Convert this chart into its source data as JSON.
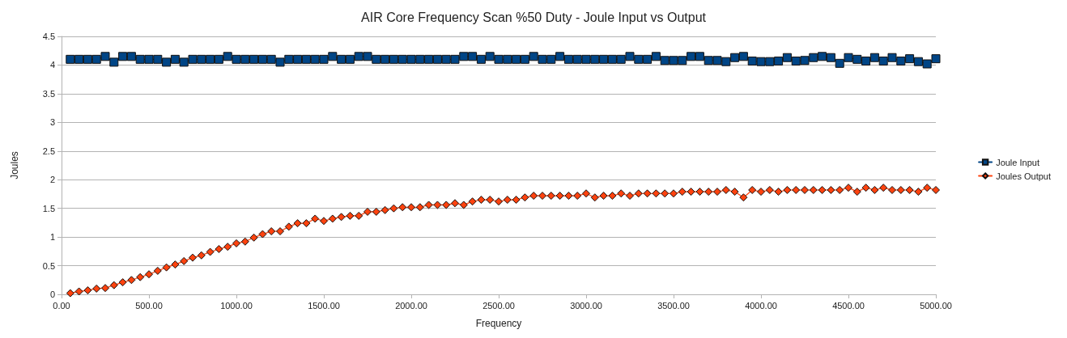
{
  "chart_data": {
    "type": "line",
    "title": "AIR Core Frequency Scan %50 Duty - Joule Input vs Output",
    "xlabel": "Frequency",
    "ylabel": "Joules",
    "x": [
      50,
      100,
      150,
      200,
      250,
      300,
      350,
      400,
      450,
      500,
      550,
      600,
      650,
      700,
      750,
      800,
      850,
      900,
      950,
      1000,
      1050,
      1100,
      1150,
      1200,
      1250,
      1300,
      1350,
      1400,
      1450,
      1500,
      1550,
      1600,
      1650,
      1700,
      1750,
      1800,
      1850,
      1900,
      1950,
      2000,
      2050,
      2100,
      2150,
      2200,
      2250,
      2300,
      2350,
      2400,
      2450,
      2500,
      2550,
      2600,
      2650,
      2700,
      2750,
      2800,
      2850,
      2900,
      2950,
      3000,
      3050,
      3100,
      3150,
      3200,
      3250,
      3300,
      3350,
      3400,
      3450,
      3500,
      3550,
      3600,
      3650,
      3700,
      3750,
      3800,
      3850,
      3900,
      3950,
      4000,
      4050,
      4100,
      4150,
      4200,
      4250,
      4300,
      4350,
      4400,
      4450,
      4500,
      4550,
      4600,
      4650,
      4700,
      4750,
      4800,
      4850,
      4900,
      4950,
      5000
    ],
    "series": [
      {
        "name": "Joule Input",
        "color": "#004586",
        "marker": "square",
        "values": [
          4.1,
          4.1,
          4.1,
          4.1,
          4.15,
          4.05,
          4.15,
          4.15,
          4.1,
          4.1,
          4.1,
          4.05,
          4.1,
          4.05,
          4.1,
          4.1,
          4.1,
          4.1,
          4.15,
          4.1,
          4.1,
          4.1,
          4.1,
          4.1,
          4.05,
          4.1,
          4.1,
          4.1,
          4.1,
          4.1,
          4.15,
          4.1,
          4.1,
          4.15,
          4.15,
          4.1,
          4.1,
          4.1,
          4.1,
          4.1,
          4.1,
          4.1,
          4.1,
          4.1,
          4.1,
          4.15,
          4.15,
          4.1,
          4.15,
          4.1,
          4.1,
          4.1,
          4.1,
          4.15,
          4.1,
          4.1,
          4.15,
          4.1,
          4.1,
          4.1,
          4.1,
          4.1,
          4.1,
          4.1,
          4.15,
          4.1,
          4.1,
          4.15,
          4.08,
          4.08,
          4.08,
          4.15,
          4.15,
          4.08,
          4.08,
          4.06,
          4.13,
          4.15,
          4.07,
          4.06,
          4.06,
          4.07,
          4.13,
          4.07,
          4.08,
          4.13,
          4.15,
          4.13,
          4.03,
          4.13,
          4.1,
          4.07,
          4.13,
          4.07,
          4.13,
          4.07,
          4.11,
          4.06,
          4.02,
          4.11
        ]
      },
      {
        "name": "Joules Output",
        "color": "#ff420e",
        "marker": "diamond",
        "values": [
          0.02,
          0.05,
          0.07,
          0.1,
          0.11,
          0.16,
          0.21,
          0.25,
          0.3,
          0.35,
          0.41,
          0.47,
          0.52,
          0.58,
          0.64,
          0.68,
          0.74,
          0.79,
          0.83,
          0.89,
          0.92,
          0.99,
          1.05,
          1.1,
          1.1,
          1.18,
          1.24,
          1.24,
          1.32,
          1.28,
          1.32,
          1.35,
          1.37,
          1.37,
          1.44,
          1.44,
          1.47,
          1.5,
          1.52,
          1.52,
          1.52,
          1.56,
          1.56,
          1.56,
          1.59,
          1.56,
          1.62,
          1.65,
          1.65,
          1.62,
          1.65,
          1.65,
          1.69,
          1.72,
          1.72,
          1.72,
          1.72,
          1.72,
          1.72,
          1.76,
          1.69,
          1.72,
          1.72,
          1.76,
          1.72,
          1.76,
          1.76,
          1.76,
          1.76,
          1.76,
          1.79,
          1.79,
          1.79,
          1.79,
          1.79,
          1.82,
          1.79,
          1.69,
          1.82,
          1.79,
          1.82,
          1.79,
          1.82,
          1.82,
          1.82,
          1.82,
          1.82,
          1.82,
          1.82,
          1.86,
          1.79,
          1.86,
          1.82,
          1.86,
          1.82,
          1.82,
          1.82,
          1.79,
          1.86,
          1.82
        ]
      }
    ],
    "xlim": [
      0,
      5000
    ],
    "xticks": [
      {
        "value": 0,
        "label": "0.00"
      },
      {
        "value": 500,
        "label": "500.00"
      },
      {
        "value": 1000,
        "label": "1000.00"
      },
      {
        "value": 1500,
        "label": "1500.00"
      },
      {
        "value": 2000,
        "label": "2000.00"
      },
      {
        "value": 2500,
        "label": "2500.00"
      },
      {
        "value": 3000,
        "label": "3000.00"
      },
      {
        "value": 3500,
        "label": "3500.00"
      },
      {
        "value": 4000,
        "label": "4000.00"
      },
      {
        "value": 4500,
        "label": "4500.00"
      },
      {
        "value": 5000,
        "label": "5000.00"
      }
    ],
    "ylim": [
      0,
      4.5
    ],
    "yticks": [
      0,
      0.5,
      1,
      1.5,
      2,
      2.5,
      3,
      3.5,
      4,
      4.5
    ],
    "grid": "y",
    "legend": "right",
    "line_style": "solid"
  }
}
